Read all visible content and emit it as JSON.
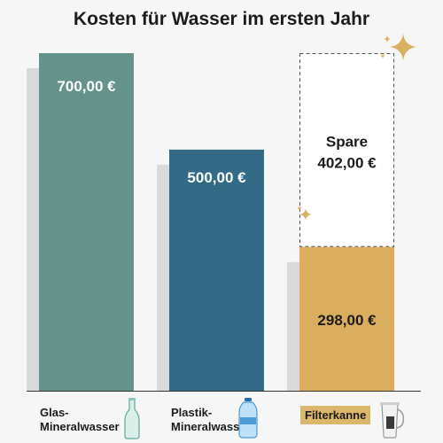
{
  "chart_data": {
    "type": "bar",
    "stacked": true,
    "title": "Kosten für Wasser im ersten Jahr",
    "categories": [
      "Glas-Mineralwasser",
      "Plastik-Mineralwasser",
      "Filterkanne"
    ],
    "category_lines": [
      [
        "Glas-",
        "Mineralwasser"
      ],
      [
        "Plastik-",
        "Mineralwasser"
      ],
      [
        "Filterkanne"
      ]
    ],
    "values": [
      700,
      500,
      298
    ],
    "value_labels": [
      "700,00 €",
      "500,00 €",
      "298,00 €"
    ],
    "savings": {
      "category": "Filterkanne",
      "value": 402,
      "label_line1": "Spare",
      "label_line2": "402,00 €"
    },
    "ylim": [
      0,
      700
    ],
    "colors": {
      "glas": "#65938c",
      "plastik": "#336b86",
      "filter": "#dbae5f",
      "shadow": "#dadada",
      "sparkle": "#d7b062"
    },
    "grid": false,
    "legend": "none"
  }
}
